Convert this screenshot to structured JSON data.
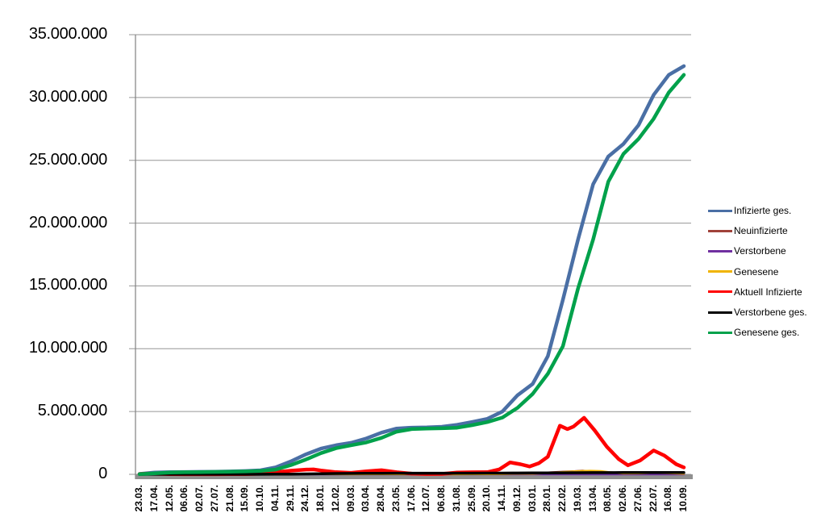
{
  "page": {
    "background": "#FFFFFF"
  },
  "chart_data": {
    "type": "line",
    "title": "",
    "xlabel": "",
    "ylabel": "",
    "ylim": [
      0,
      35000000
    ],
    "grid": true,
    "legend_position": "right",
    "axis_colors": {
      "axis_line": "#808080",
      "gridline": "#969696",
      "baseline_band": "#909090",
      "label_color": "#000000"
    },
    "y_ticks": [
      {
        "value": 0,
        "label": "0"
      },
      {
        "value": 5000000,
        "label": "5.000.000"
      },
      {
        "value": 10000000,
        "label": "10.000.000"
      },
      {
        "value": 15000000,
        "label": "15.000.000"
      },
      {
        "value": 20000000,
        "label": "20.000.000"
      },
      {
        "value": 25000000,
        "label": "25.000.000"
      },
      {
        "value": 30000000,
        "label": "30.000.000"
      },
      {
        "value": 35000000,
        "label": "35.000.000"
      }
    ],
    "categories": [
      "23.03.",
      "17.04.",
      "12.05.",
      "06.06.",
      "02.07.",
      "27.07.",
      "21.08.",
      "15.09.",
      "10.10.",
      "04.11.",
      "29.11.",
      "24.12.",
      "18.01.",
      "12.02.",
      "09.03.",
      "03.04.",
      "28.04.",
      "23.05.",
      "17.06.",
      "12.07.",
      "06.08.",
      "31.08.",
      "25.09.",
      "20.10.",
      "14.11.",
      "09.12.",
      "03.01.",
      "28.01.",
      "22.02.",
      "19.03.",
      "13.04.",
      "08.05.",
      "02.06.",
      "27.06.",
      "22.07.",
      "16.08.",
      "10.09."
    ],
    "series": [
      {
        "name": "Infizierte ges.",
        "color": "#4A6FA5",
        "width": 4.5,
        "points": [
          [
            0,
            30000
          ],
          [
            1,
            140000
          ],
          [
            2,
            172000
          ],
          [
            3,
            186000
          ],
          [
            4,
            196000
          ],
          [
            5,
            206000
          ],
          [
            6,
            232000
          ],
          [
            7,
            263000
          ],
          [
            8,
            320000
          ],
          [
            9,
            560000
          ],
          [
            10,
            1030000
          ],
          [
            11,
            1590000
          ],
          [
            12,
            2050000
          ],
          [
            13,
            2320000
          ],
          [
            14,
            2510000
          ],
          [
            15,
            2860000
          ],
          [
            16,
            3320000
          ],
          [
            17,
            3650000
          ],
          [
            18,
            3720000
          ],
          [
            19,
            3740000
          ],
          [
            20,
            3790000
          ],
          [
            21,
            3940000
          ],
          [
            22,
            4170000
          ],
          [
            23,
            4420000
          ],
          [
            24,
            5000000
          ],
          [
            25,
            6300000
          ],
          [
            26,
            7200000
          ],
          [
            27,
            9400000
          ],
          [
            28,
            13900000
          ],
          [
            29,
            18700000
          ],
          [
            30,
            23100000
          ],
          [
            31,
            25300000
          ],
          [
            32,
            26300000
          ],
          [
            33,
            27800000
          ],
          [
            34,
            30200000
          ],
          [
            35,
            31800000
          ],
          [
            36,
            32500000
          ]
        ]
      },
      {
        "name": "Neuinfizierte",
        "color": "#A0423A",
        "width": 2.5,
        "points": [
          [
            0,
            5000
          ],
          [
            1,
            4000
          ],
          [
            2,
            1500
          ],
          [
            4,
            1000
          ],
          [
            6,
            2000
          ],
          [
            8,
            6000
          ],
          [
            9,
            15000
          ],
          [
            10,
            20000
          ],
          [
            11,
            26000
          ],
          [
            12,
            14000
          ],
          [
            13,
            9000
          ],
          [
            14,
            10000
          ],
          [
            15,
            18000
          ],
          [
            16,
            21000
          ],
          [
            17,
            8000
          ],
          [
            18,
            2000
          ],
          [
            19,
            1000
          ],
          [
            20,
            3000
          ],
          [
            21,
            9000
          ],
          [
            22,
            11000
          ],
          [
            23,
            13000
          ],
          [
            24,
            40000
          ],
          [
            25,
            60000
          ],
          [
            26,
            40000
          ],
          [
            27,
            150000
          ],
          [
            28,
            210000
          ],
          [
            28.8,
            250000
          ],
          [
            29.3,
            290000
          ],
          [
            30,
            200000
          ],
          [
            31,
            95000
          ],
          [
            32,
            45000
          ],
          [
            33,
            100000
          ],
          [
            34,
            135000
          ],
          [
            35,
            60000
          ],
          [
            36,
            30000
          ]
        ]
      },
      {
        "name": "Verstorbene",
        "color": "#7030A0",
        "width": 2.5,
        "points": [
          [
            0,
            300
          ],
          [
            2,
            1200
          ],
          [
            4,
            300
          ],
          [
            8,
            200
          ],
          [
            10,
            600
          ],
          [
            11,
            950
          ],
          [
            12,
            850
          ],
          [
            13,
            600
          ],
          [
            14,
            350
          ],
          [
            16,
            300
          ],
          [
            18,
            150
          ],
          [
            20,
            100
          ],
          [
            22,
            150
          ],
          [
            24,
            300
          ],
          [
            25,
            450
          ],
          [
            26,
            400
          ],
          [
            27,
            300
          ],
          [
            28,
            280
          ],
          [
            29,
            320
          ],
          [
            30,
            350
          ],
          [
            31,
            250
          ],
          [
            32,
            150
          ],
          [
            33,
            150
          ],
          [
            34,
            180
          ],
          [
            35,
            180
          ],
          [
            36,
            120
          ]
        ]
      },
      {
        "name": "Genesene",
        "color": "#F0B400",
        "width": 2.5,
        "points": [
          [
            0,
            2500
          ],
          [
            1,
            5000
          ],
          [
            2,
            3000
          ],
          [
            4,
            1000
          ],
          [
            6,
            1500
          ],
          [
            8,
            4000
          ],
          [
            9,
            8000
          ],
          [
            10,
            16000
          ],
          [
            11,
            24000
          ],
          [
            12,
            22000
          ],
          [
            13,
            12000
          ],
          [
            14,
            9000
          ],
          [
            15,
            14000
          ],
          [
            16,
            19000
          ],
          [
            17,
            12000
          ],
          [
            18,
            4000
          ],
          [
            19,
            1500
          ],
          [
            20,
            2000
          ],
          [
            21,
            7000
          ],
          [
            22,
            10000
          ],
          [
            23,
            12000
          ],
          [
            24,
            28000
          ],
          [
            25,
            55000
          ],
          [
            26,
            48000
          ],
          [
            27,
            95000
          ],
          [
            28,
            175000
          ],
          [
            29,
            250000
          ],
          [
            29.8,
            285000
          ],
          [
            30.5,
            255000
          ],
          [
            31,
            175000
          ],
          [
            32,
            70000
          ],
          [
            33,
            80000
          ],
          [
            34,
            125000
          ],
          [
            35,
            95000
          ],
          [
            36,
            45000
          ]
        ]
      },
      {
        "name": "Aktuell Infizierte",
        "color": "#FF0000",
        "width": 4.5,
        "points": [
          [
            0,
            25000
          ],
          [
            0.5,
            60000
          ],
          [
            1,
            52000
          ],
          [
            2,
            16000
          ],
          [
            3,
            8000
          ],
          [
            4,
            7000
          ],
          [
            5,
            9500
          ],
          [
            6,
            16000
          ],
          [
            7,
            21000
          ],
          [
            8,
            43000
          ],
          [
            9,
            170000
          ],
          [
            10,
            290000
          ],
          [
            11,
            380000
          ],
          [
            11.5,
            390000
          ],
          [
            12,
            310000
          ],
          [
            13,
            175000
          ],
          [
            14,
            120000
          ],
          [
            15,
            240000
          ],
          [
            15.7,
            310000
          ],
          [
            16,
            330000
          ],
          [
            17,
            165000
          ],
          [
            18,
            60000
          ],
          [
            19,
            25000
          ],
          [
            20,
            35000
          ],
          [
            21,
            140000
          ],
          [
            22,
            165000
          ],
          [
            23,
            175000
          ],
          [
            23.8,
            400000
          ],
          [
            24.5,
            950000
          ],
          [
            25.2,
            800000
          ],
          [
            25.8,
            620000
          ],
          [
            26.4,
            880000
          ],
          [
            27,
            1400000
          ],
          [
            27.8,
            3870000
          ],
          [
            28.3,
            3600000
          ],
          [
            28.7,
            3800000
          ],
          [
            29.4,
            4500000
          ],
          [
            30.1,
            3500000
          ],
          [
            30.9,
            2200000
          ],
          [
            31.7,
            1200000
          ],
          [
            32.3,
            720000
          ],
          [
            33.1,
            1100000
          ],
          [
            34,
            1900000
          ],
          [
            34.7,
            1500000
          ],
          [
            35.5,
            800000
          ],
          [
            36,
            550000
          ]
        ]
      },
      {
        "name": "Verstorbene ges.",
        "color": "#000000",
        "width": 3.5,
        "points": [
          [
            0,
            200
          ],
          [
            1,
            4300
          ],
          [
            2,
            7700
          ],
          [
            3,
            8700
          ],
          [
            4,
            9000
          ],
          [
            5,
            9100
          ],
          [
            6,
            9250
          ],
          [
            7,
            9400
          ],
          [
            8,
            9600
          ],
          [
            9,
            11000
          ],
          [
            10,
            16000
          ],
          [
            11,
            29000
          ],
          [
            12,
            47000
          ],
          [
            13,
            64000
          ],
          [
            14,
            72000
          ],
          [
            15,
            77000
          ],
          [
            16,
            82000
          ],
          [
            17,
            87000
          ],
          [
            18,
            90000
          ],
          [
            19,
            91000
          ],
          [
            20,
            91700
          ],
          [
            21,
            92200
          ],
          [
            22,
            93000
          ],
          [
            23,
            94900
          ],
          [
            24,
            98000
          ],
          [
            25,
            104000
          ],
          [
            26,
            112000
          ],
          [
            27,
            117500
          ],
          [
            28,
            121500
          ],
          [
            29,
            126000
          ],
          [
            30,
            132000
          ],
          [
            31,
            136500
          ],
          [
            32,
            139000
          ],
          [
            33,
            140200
          ],
          [
            34,
            142000
          ],
          [
            35,
            145700
          ],
          [
            36,
            148000
          ]
        ]
      },
      {
        "name": "Genesene ges.",
        "color": "#00A14B",
        "width": 4.5,
        "points": [
          [
            0,
            10000
          ],
          [
            1,
            85000
          ],
          [
            2,
            150000
          ],
          [
            3,
            170000
          ],
          [
            4,
            181000
          ],
          [
            5,
            190000
          ],
          [
            6,
            207000
          ],
          [
            7,
            232000
          ],
          [
            8,
            275000
          ],
          [
            9,
            380000
          ],
          [
            10,
            730000
          ],
          [
            11,
            1180000
          ],
          [
            12,
            1690000
          ],
          [
            13,
            2080000
          ],
          [
            14,
            2320000
          ],
          [
            15,
            2540000
          ],
          [
            16,
            2900000
          ],
          [
            17,
            3400000
          ],
          [
            18,
            3600000
          ],
          [
            19,
            3650000
          ],
          [
            20,
            3670000
          ],
          [
            21,
            3710000
          ],
          [
            22,
            3920000
          ],
          [
            23,
            4160000
          ],
          [
            24,
            4520000
          ],
          [
            25,
            5300000
          ],
          [
            26,
            6400000
          ],
          [
            27,
            8000000
          ],
          [
            28,
            10200000
          ],
          [
            29,
            14800000
          ],
          [
            30,
            18700000
          ],
          [
            31,
            23300000
          ],
          [
            32,
            25500000
          ],
          [
            33,
            26700000
          ],
          [
            34,
            28300000
          ],
          [
            35,
            30400000
          ],
          [
            36,
            31800000
          ]
        ]
      }
    ]
  }
}
